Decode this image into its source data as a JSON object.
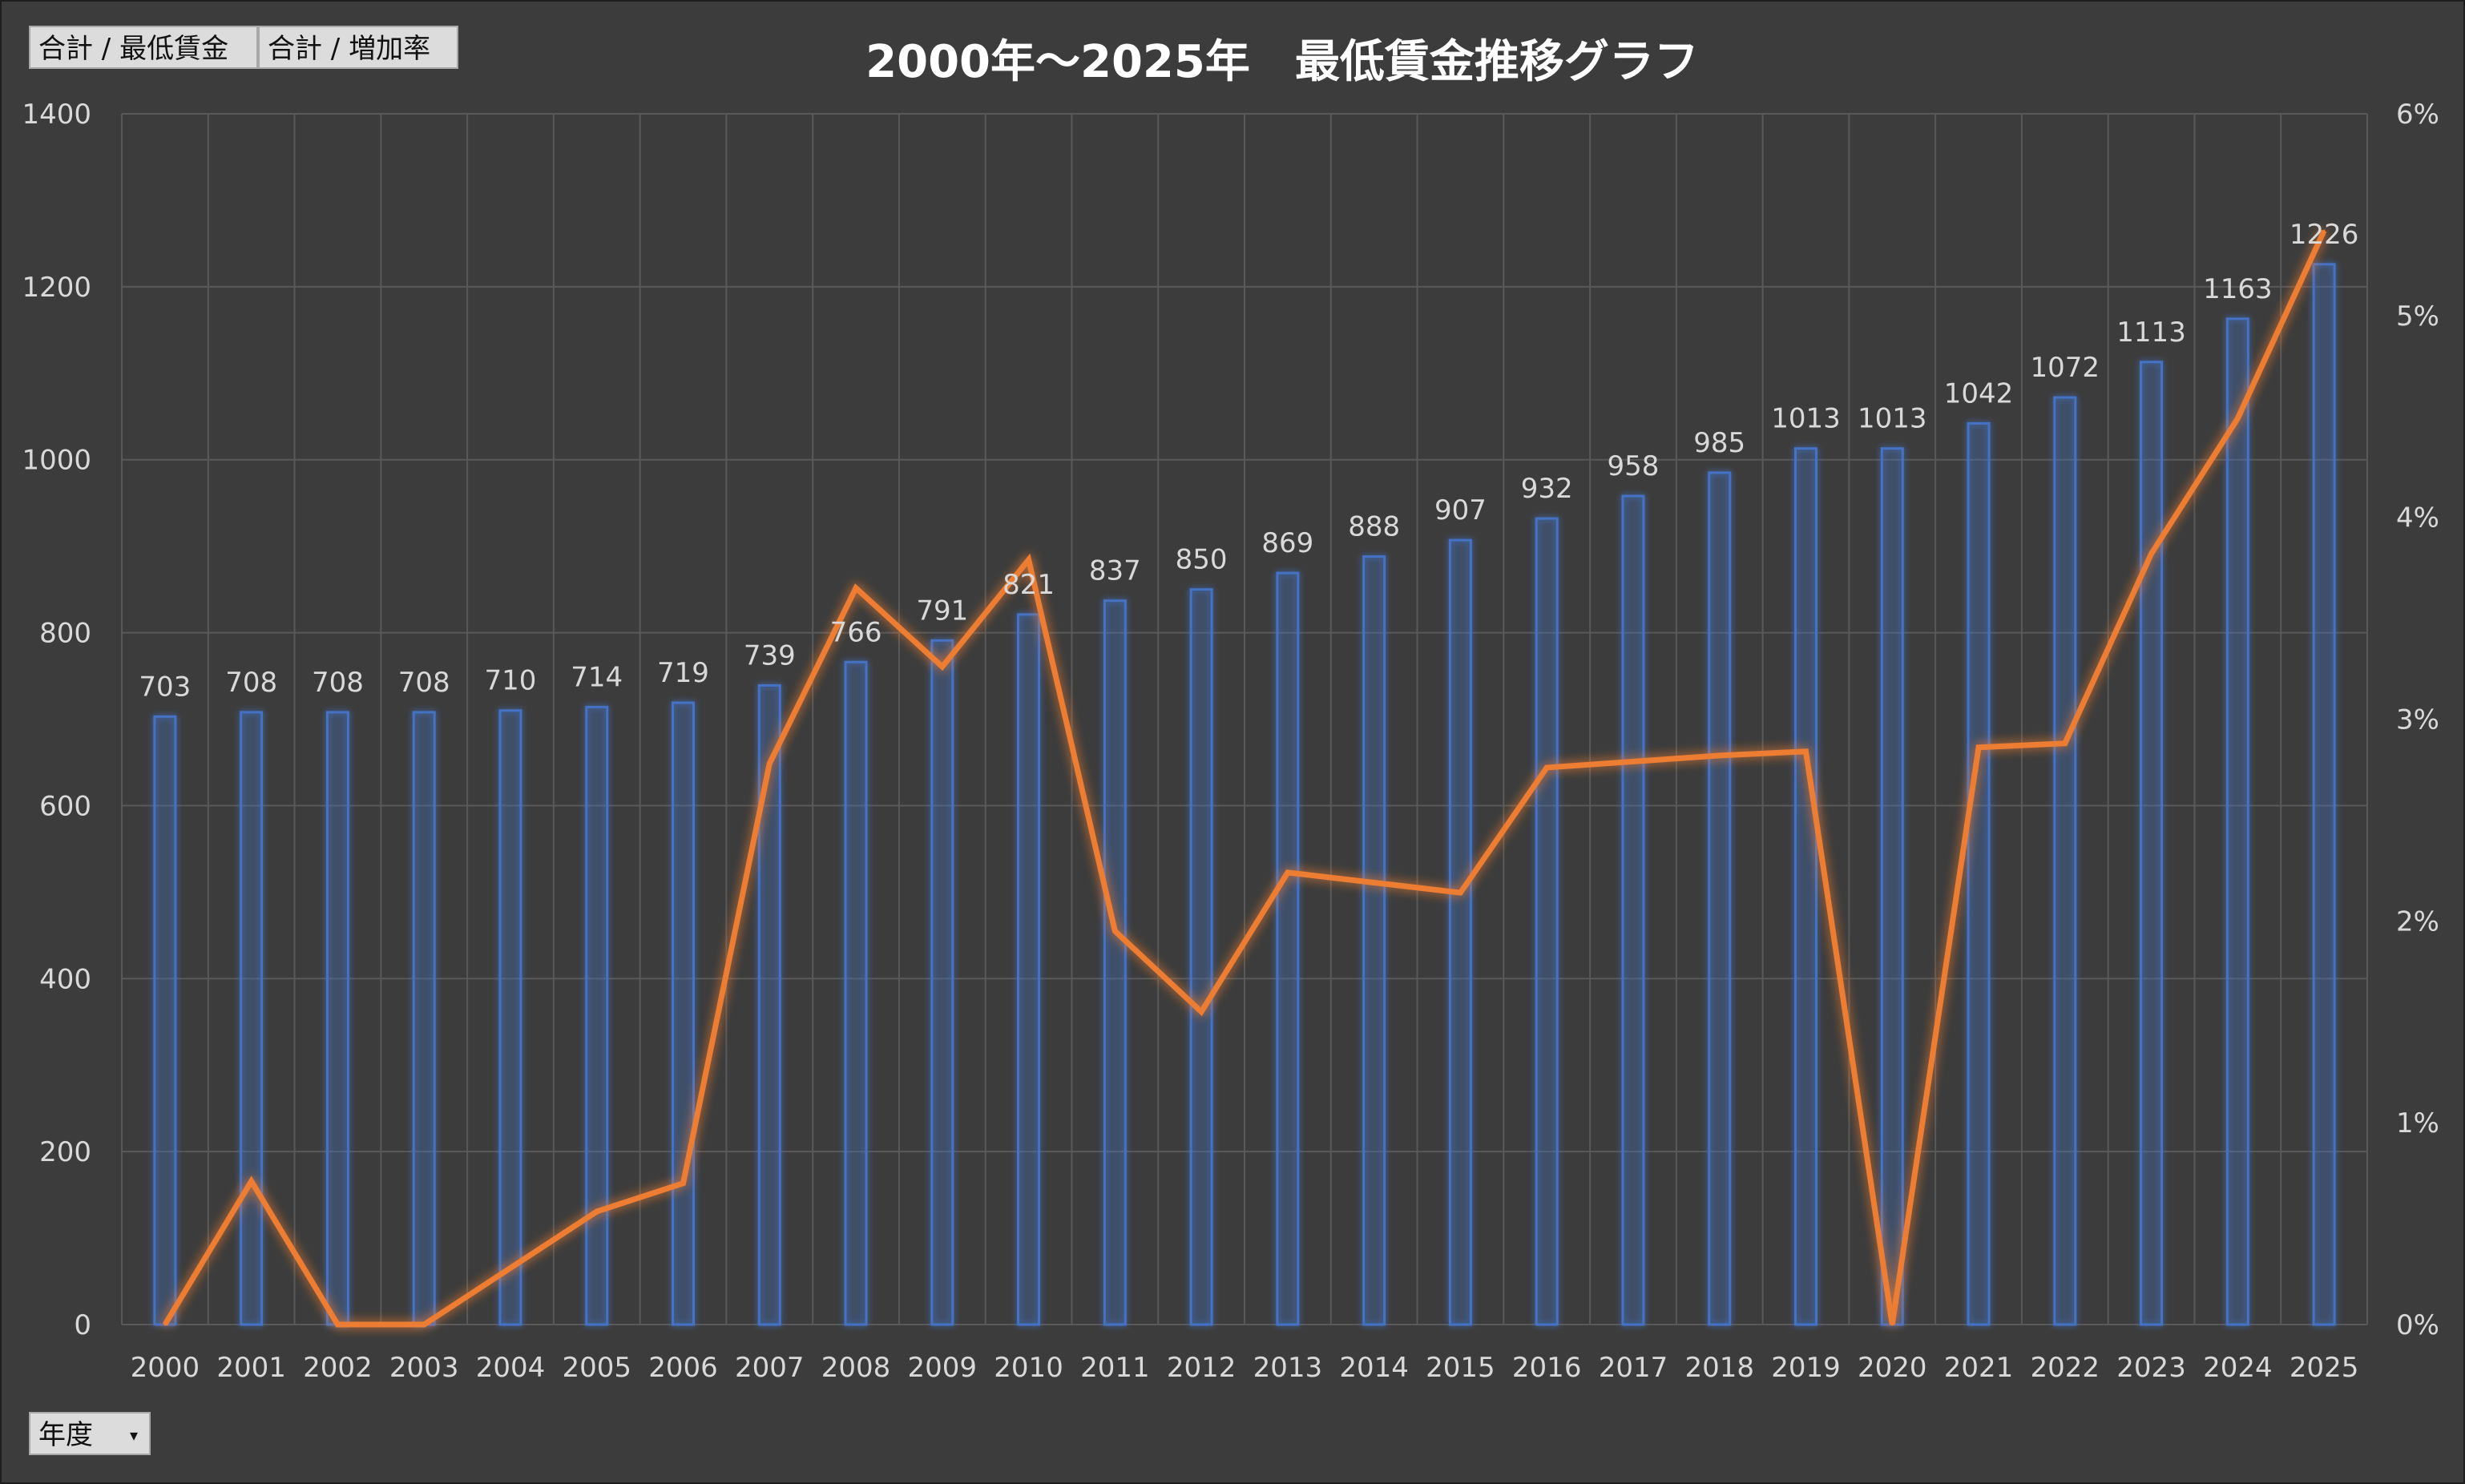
{
  "field_buttons": {
    "value_field_1": "合計 / 最低賃金",
    "value_field_2": "合計 / 増加率",
    "axis_field": "年度"
  },
  "colors": {
    "bar": "#4472c4",
    "line": "#ed7d31",
    "text": "#d9d9d9",
    "grid": "#595959"
  },
  "chart_data": {
    "type": "bar",
    "title": "2000年～2025年　最低賃金推移グラフ",
    "categories": [
      "2000",
      "2001",
      "2002",
      "2003",
      "2004",
      "2005",
      "2006",
      "2007",
      "2008",
      "2009",
      "2010",
      "2011",
      "2012",
      "2013",
      "2014",
      "2015",
      "2016",
      "2017",
      "2018",
      "2019",
      "2020",
      "2021",
      "2022",
      "2023",
      "2024",
      "2025"
    ],
    "ylim": [
      0,
      1400
    ],
    "yticks": [
      "0",
      "200",
      "400",
      "600",
      "800",
      "1000",
      "1200",
      "1400"
    ],
    "y2lim": [
      0,
      0.06
    ],
    "y2ticks": [
      "0%",
      "1%",
      "2%",
      "3%",
      "4%",
      "5%",
      "6%"
    ],
    "series": [
      {
        "name": "合計 / 最低賃金",
        "type": "bar",
        "axis": "left",
        "values": [
          703,
          708,
          708,
          708,
          710,
          714,
          719,
          739,
          766,
          791,
          821,
          837,
          850,
          869,
          888,
          907,
          932,
          958,
          985,
          1013,
          1013,
          1042,
          1072,
          1113,
          1163,
          1226
        ],
        "labels": [
          "703",
          "708",
          "708",
          "708",
          "710",
          "714",
          "719",
          "739",
          "766",
          "791",
          "821",
          "837",
          "850",
          "869",
          "888",
          "907",
          "932",
          "958",
          "985",
          "1013",
          "1013",
          "1042",
          "1072",
          "1113",
          "1163",
          "1226"
        ]
      },
      {
        "name": "合計 / 増加率",
        "type": "line",
        "axis": "right",
        "values": [
          0.0,
          0.0071,
          0.0,
          0.0,
          0.0028,
          0.0056,
          0.007,
          0.0278,
          0.0365,
          0.0326,
          0.0379,
          0.0195,
          0.0155,
          0.0224,
          0.0219,
          0.0214,
          0.0276,
          0.0279,
          0.0282,
          0.0284,
          0.0,
          0.0286,
          0.0288,
          0.0382,
          0.0449,
          0.0542
        ]
      }
    ],
    "grid": true
  }
}
